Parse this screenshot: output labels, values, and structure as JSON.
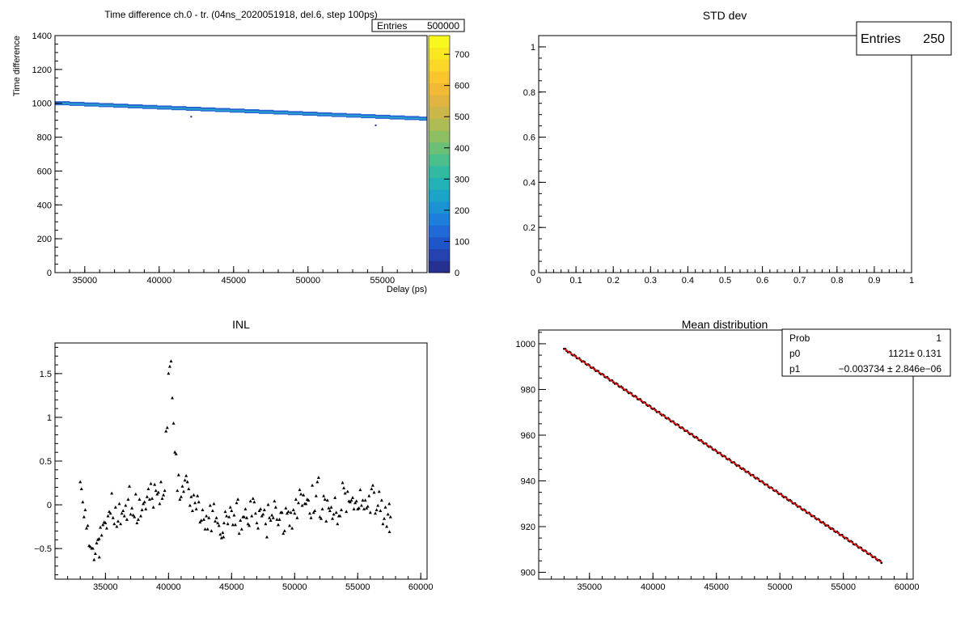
{
  "chart_data": [
    {
      "id": "p1",
      "type": "heatmap",
      "title": "Time difference ch.0 - tr. (04ns_2020051918, del.6, step 100ps)",
      "xlabel": "Delay (ps)",
      "ylabel": "Time difference",
      "xlim": [
        33000,
        58000
      ],
      "ylim": [
        0,
        1400
      ],
      "xticks": [
        35000,
        40000,
        45000,
        50000,
        55000
      ],
      "yticks": [
        0,
        200,
        400,
        600,
        800,
        1000,
        1200,
        1400
      ],
      "colorbar": {
        "min": 0,
        "max": 760,
        "ticks": [
          0,
          100,
          200,
          300,
          400,
          500,
          600,
          700
        ]
      },
      "stats": [
        {
          "label": "Entries",
          "value": "500000"
        }
      ],
      "band": {
        "x": [
          33000,
          58000
        ],
        "y": [
          998,
          905
        ]
      },
      "outliers": [
        [
          42150,
          921
        ],
        [
          54550,
          870
        ]
      ]
    },
    {
      "id": "p2",
      "type": "scatter",
      "title": "STD dev",
      "xlim": [
        0,
        1
      ],
      "ylim": [
        0,
        1.05
      ],
      "xticks": [
        0,
        0.1,
        0.2,
        0.3,
        0.4,
        0.5,
        0.6,
        0.7,
        0.8,
        0.9,
        1
      ],
      "yticks": [
        0,
        0.2,
        0.4,
        0.6,
        0.8,
        1
      ],
      "stats": [
        {
          "label": "Entries",
          "value": "250"
        }
      ],
      "points": []
    },
    {
      "id": "p3",
      "type": "scatter",
      "title": "INL",
      "xlim": [
        31000,
        60500
      ],
      "ylim": [
        -0.85,
        1.85
      ],
      "xticks": [
        35000,
        40000,
        45000,
        50000,
        55000,
        60000
      ],
      "yticks": [
        -0.5,
        0,
        0.5,
        1,
        1.5
      ],
      "ytick_labels": [
        "−0.5",
        "0",
        "0.5",
        "1",
        "1.5"
      ],
      "x_start": 33000,
      "x_step": 100,
      "y_values": [
        0.26,
        0.18,
        0.03,
        -0.14,
        -0.06,
        -0.27,
        -0.24,
        -0.47,
        -0.48,
        -0.5,
        -0.5,
        -0.63,
        -0.56,
        -0.44,
        -0.4,
        -0.39,
        -0.26,
        -0.35,
        -0.23,
        -0.2,
        -0.21,
        -0.27,
        -0.13,
        -0.08,
        -0.1,
        0.13,
        -0.15,
        -0.22,
        -0.03,
        -0.25,
        -0.19,
        0.01,
        -0.22,
        -0.1,
        -0.07,
        -0.13,
        -0.01,
        -0.17,
        0.06,
        0.21,
        -0.11,
        -0.04,
        -0.12,
        -0.14,
        0.12,
        -0.21,
        -0.17,
        0.06,
        -0.13,
        -0.06,
        0.01,
        0.03,
        -0.05,
        0.09,
        0.18,
        0.06,
        0.24,
        0.07,
        -0.03,
        0.23,
        0.16,
        0.12,
        0.14,
        0.01,
        0.26,
        0.07,
        0.11,
        0.16,
        0.84,
        0.88,
        1.5,
        1.58,
        1.64,
        1.22,
        0.93,
        0.6,
        0.58,
        0.16,
        0.34,
        0.06,
        0.09,
        0.21,
        0.15,
        0.28,
        0.33,
        0.26,
        0.18,
        -0.01,
        0.09,
        -0.07,
        0.11,
        0.02,
        -0.05,
        0.1,
        0.03,
        -0.2,
        -0.18,
        -0.06,
        -0.17,
        -0.28,
        -0.13,
        -0.28,
        -0.15,
        -0.01,
        -0.3,
        -0.07,
        0.01,
        -0.19,
        -0.15,
        -0.21,
        -0.24,
        -0.34,
        -0.38,
        -0.32,
        -0.21,
        -0.08,
        -0.13,
        -0.22,
        -0.14,
        -0.03,
        -0.07,
        -0.23,
        -0.12,
        -0.23,
        0.02,
        0.06,
        -0.33,
        -0.18,
        -0.28,
        -0.14,
        -0.14,
        -0.05,
        -0.15,
        -0.22,
        -0.24,
        0.04,
        -0.13,
        0.07,
        0.03,
        -0.1,
        -0.21,
        -0.27,
        -0.07,
        -0.05,
        -0.13,
        -0.11,
        -0.06,
        -0.22,
        -0.37,
        0,
        -0.15,
        -0.18,
        -0.12,
        -0.15,
        0.04,
        -0.03,
        -0.17,
        -0.23,
        -0.17,
        -0.09,
        -0.09,
        -0.33,
        -0.3,
        -0.04,
        -0.1,
        -0.08,
        -0.24,
        -0.09,
        -0.27,
        -0.06,
        -0.1,
        0.06,
        -0.15,
        0.02,
        0.17,
        0.12,
        -0.01,
        0.11,
        0.01,
        0.01,
        0.06,
        0.05,
        -0.1,
        -0.15,
        0.22,
        -0.09,
        -0.07,
        0.1,
        0.26,
        0.31,
        -0.14,
        -0.16,
        -0.05,
        0.1,
        0.06,
        -0.19,
        0.05,
        -0.04,
        -0.07,
        -0.03,
        -0.16,
        -0.11,
        0.08,
        -0.09,
        -0.22,
        -0.13,
        -0.13,
        -0.06,
        0.25,
        0.19,
        0.13,
        -0.08,
        0.15,
        0.04,
        0.03,
        0.05,
        0.08,
        -0.05,
        0.02,
        0.04,
        -0.05,
        -0.04,
        0.17,
        -0.01,
        0.05,
        -0.05,
        0.05,
        -0.04,
        -0.02,
        0.1,
        -0.09,
        0.18,
        0.22,
        0.14,
        -0.1,
        -0.06,
        -0.01,
        0.15,
        -0.07,
        0.05,
        -0.22,
        -0.16,
        -0.03,
        -0.25,
        -0.11,
        0.01,
        -0.14
      ],
      "outliers": [
        [
          34510,
          -0.6
        ],
        [
          44360,
          -0.37
        ],
        [
          57520,
          -0.31
        ]
      ]
    },
    {
      "id": "p4",
      "type": "scatter",
      "title": "Mean distribution",
      "xlim": [
        31000,
        60500
      ],
      "ylim": [
        897,
        1006
      ],
      "xticks": [
        35000,
        40000,
        45000,
        50000,
        55000,
        60000
      ],
      "yticks": [
        900,
        920,
        940,
        960,
        980,
        1000
      ],
      "x_start": 33000,
      "x_step": 100,
      "n": 251,
      "fit": {
        "p0": 1121,
        "p1": -0.003734,
        "range": [
          33000,
          58000
        ],
        "color": "#ff0000"
      },
      "stats": [
        {
          "label": "Prob",
          "value": "1"
        },
        {
          "label": "p0",
          "value": "1121± 0.131"
        },
        {
          "label": "p1",
          "value": "−0.003734 ± 2.846e−06"
        }
      ]
    }
  ]
}
